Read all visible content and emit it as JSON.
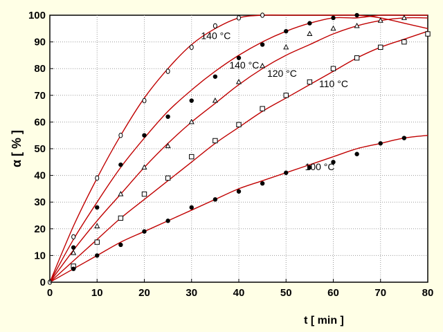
{
  "chart_data": {
    "type": "scatter",
    "title": "",
    "xlabel": "t [ min ]",
    "ylabel": "α [ % ]",
    "xlim": [
      0,
      80
    ],
    "ylim": [
      0,
      100
    ],
    "xticks": [
      0,
      10,
      20,
      30,
      40,
      50,
      60,
      70,
      80
    ],
    "yticks": [
      0,
      10,
      20,
      30,
      40,
      50,
      60,
      70,
      80,
      90,
      100
    ],
    "grid": true,
    "colors": {
      "background": "#ffffe6",
      "plot_background": "#ffffff",
      "curve": "#c00000",
      "marker": "#000000",
      "grid": "#9a9a9a"
    },
    "annotations": [
      {
        "text": "140 °C",
        "x": 32,
        "y": 91
      },
      {
        "text": "140 °C",
        "x": 38,
        "y": 80
      },
      {
        "text": "120 °C",
        "x": 46,
        "y": 77
      },
      {
        "text": "110 °C",
        "x": 57,
        "y": 73
      },
      {
        "text": "100 °C",
        "x": 54,
        "y": 42
      }
    ],
    "series": [
      {
        "marker": "circle-open",
        "points": [
          [
            0,
            0
          ],
          [
            5,
            17
          ],
          [
            10,
            39
          ],
          [
            15,
            55
          ],
          [
            20,
            68
          ],
          [
            25,
            79
          ],
          [
            30,
            88
          ],
          [
            35,
            96
          ],
          [
            40,
            99
          ],
          [
            45,
            100
          ]
        ],
        "curve": [
          [
            0,
            0
          ],
          [
            5,
            21
          ],
          [
            10,
            39
          ],
          [
            15,
            55
          ],
          [
            20,
            69
          ],
          [
            25,
            80
          ],
          [
            30,
            89
          ],
          [
            35,
            95
          ],
          [
            40,
            99
          ],
          [
            45,
            100
          ],
          [
            50,
            100
          ],
          [
            55,
            100
          ],
          [
            60,
            100
          ],
          [
            65,
            100
          ],
          [
            70,
            99
          ],
          [
            75,
            97
          ],
          [
            80,
            95
          ]
        ]
      },
      {
        "marker": "circle-filled",
        "points": [
          [
            5,
            13
          ],
          [
            10,
            28
          ],
          [
            15,
            44
          ],
          [
            20,
            55
          ],
          [
            25,
            62
          ],
          [
            30,
            68
          ],
          [
            35,
            77
          ],
          [
            40,
            84
          ],
          [
            45,
            89
          ],
          [
            50,
            94
          ],
          [
            55,
            97
          ],
          [
            60,
            99
          ],
          [
            65,
            100
          ]
        ],
        "curve": [
          [
            0,
            0
          ],
          [
            5,
            16
          ],
          [
            10,
            30
          ],
          [
            15,
            43
          ],
          [
            20,
            54
          ],
          [
            25,
            64
          ],
          [
            30,
            72
          ],
          [
            35,
            79
          ],
          [
            40,
            85
          ],
          [
            45,
            90
          ],
          [
            50,
            94
          ],
          [
            55,
            97
          ],
          [
            60,
            99
          ],
          [
            65,
            99
          ],
          [
            70,
            100
          ],
          [
            75,
            100
          ],
          [
            80,
            100
          ]
        ]
      },
      {
        "marker": "triangle-open",
        "points": [
          [
            5,
            11
          ],
          [
            10,
            21
          ],
          [
            15,
            33
          ],
          [
            20,
            43
          ],
          [
            25,
            51
          ],
          [
            30,
            60
          ],
          [
            35,
            68
          ],
          [
            40,
            75
          ],
          [
            45,
            81
          ],
          [
            50,
            88
          ],
          [
            55,
            93
          ],
          [
            60,
            95
          ],
          [
            65,
            96
          ],
          [
            70,
            98
          ],
          [
            75,
            99
          ]
        ],
        "curve": [
          [
            0,
            0
          ],
          [
            5,
            12
          ],
          [
            10,
            23
          ],
          [
            15,
            33
          ],
          [
            20,
            43
          ],
          [
            25,
            52
          ],
          [
            30,
            60
          ],
          [
            35,
            67
          ],
          [
            40,
            74
          ],
          [
            45,
            80
          ],
          [
            50,
            85
          ],
          [
            55,
            89
          ],
          [
            60,
            93
          ],
          [
            65,
            96
          ],
          [
            70,
            98
          ],
          [
            75,
            99
          ],
          [
            80,
            99
          ]
        ]
      },
      {
        "marker": "square-open",
        "points": [
          [
            5,
            6
          ],
          [
            10,
            15
          ],
          [
            15,
            24
          ],
          [
            20,
            33
          ],
          [
            25,
            39
          ],
          [
            30,
            47
          ],
          [
            35,
            53
          ],
          [
            40,
            59
          ],
          [
            45,
            65
          ],
          [
            50,
            70
          ],
          [
            55,
            75
          ],
          [
            60,
            80
          ],
          [
            65,
            84
          ],
          [
            70,
            88
          ],
          [
            75,
            90
          ],
          [
            80,
            93
          ]
        ],
        "curve": [
          [
            0,
            0
          ],
          [
            5,
            8
          ],
          [
            10,
            16
          ],
          [
            15,
            24
          ],
          [
            20,
            31
          ],
          [
            25,
            38
          ],
          [
            30,
            45
          ],
          [
            35,
            52
          ],
          [
            40,
            58
          ],
          [
            45,
            64
          ],
          [
            50,
            69
          ],
          [
            55,
            74
          ],
          [
            60,
            79
          ],
          [
            65,
            84
          ],
          [
            70,
            88
          ],
          [
            75,
            91
          ],
          [
            80,
            94
          ]
        ]
      },
      {
        "marker": "circle-filled",
        "points": [
          [
            5,
            5
          ],
          [
            10,
            10
          ],
          [
            15,
            14
          ],
          [
            20,
            19
          ],
          [
            25,
            23
          ],
          [
            30,
            28
          ],
          [
            35,
            31
          ],
          [
            40,
            34
          ],
          [
            45,
            37
          ],
          [
            50,
            41
          ],
          [
            55,
            43
          ],
          [
            60,
            45
          ],
          [
            65,
            48
          ],
          [
            70,
            52
          ],
          [
            75,
            54
          ]
        ],
        "curve": [
          [
            0,
            0
          ],
          [
            5,
            5
          ],
          [
            10,
            10
          ],
          [
            15,
            15
          ],
          [
            20,
            19
          ],
          [
            25,
            23
          ],
          [
            30,
            27
          ],
          [
            35,
            31
          ],
          [
            40,
            35
          ],
          [
            45,
            38
          ],
          [
            50,
            41
          ],
          [
            55,
            44
          ],
          [
            60,
            47
          ],
          [
            65,
            50
          ],
          [
            70,
            52
          ],
          [
            75,
            54
          ],
          [
            80,
            55
          ]
        ]
      }
    ]
  }
}
